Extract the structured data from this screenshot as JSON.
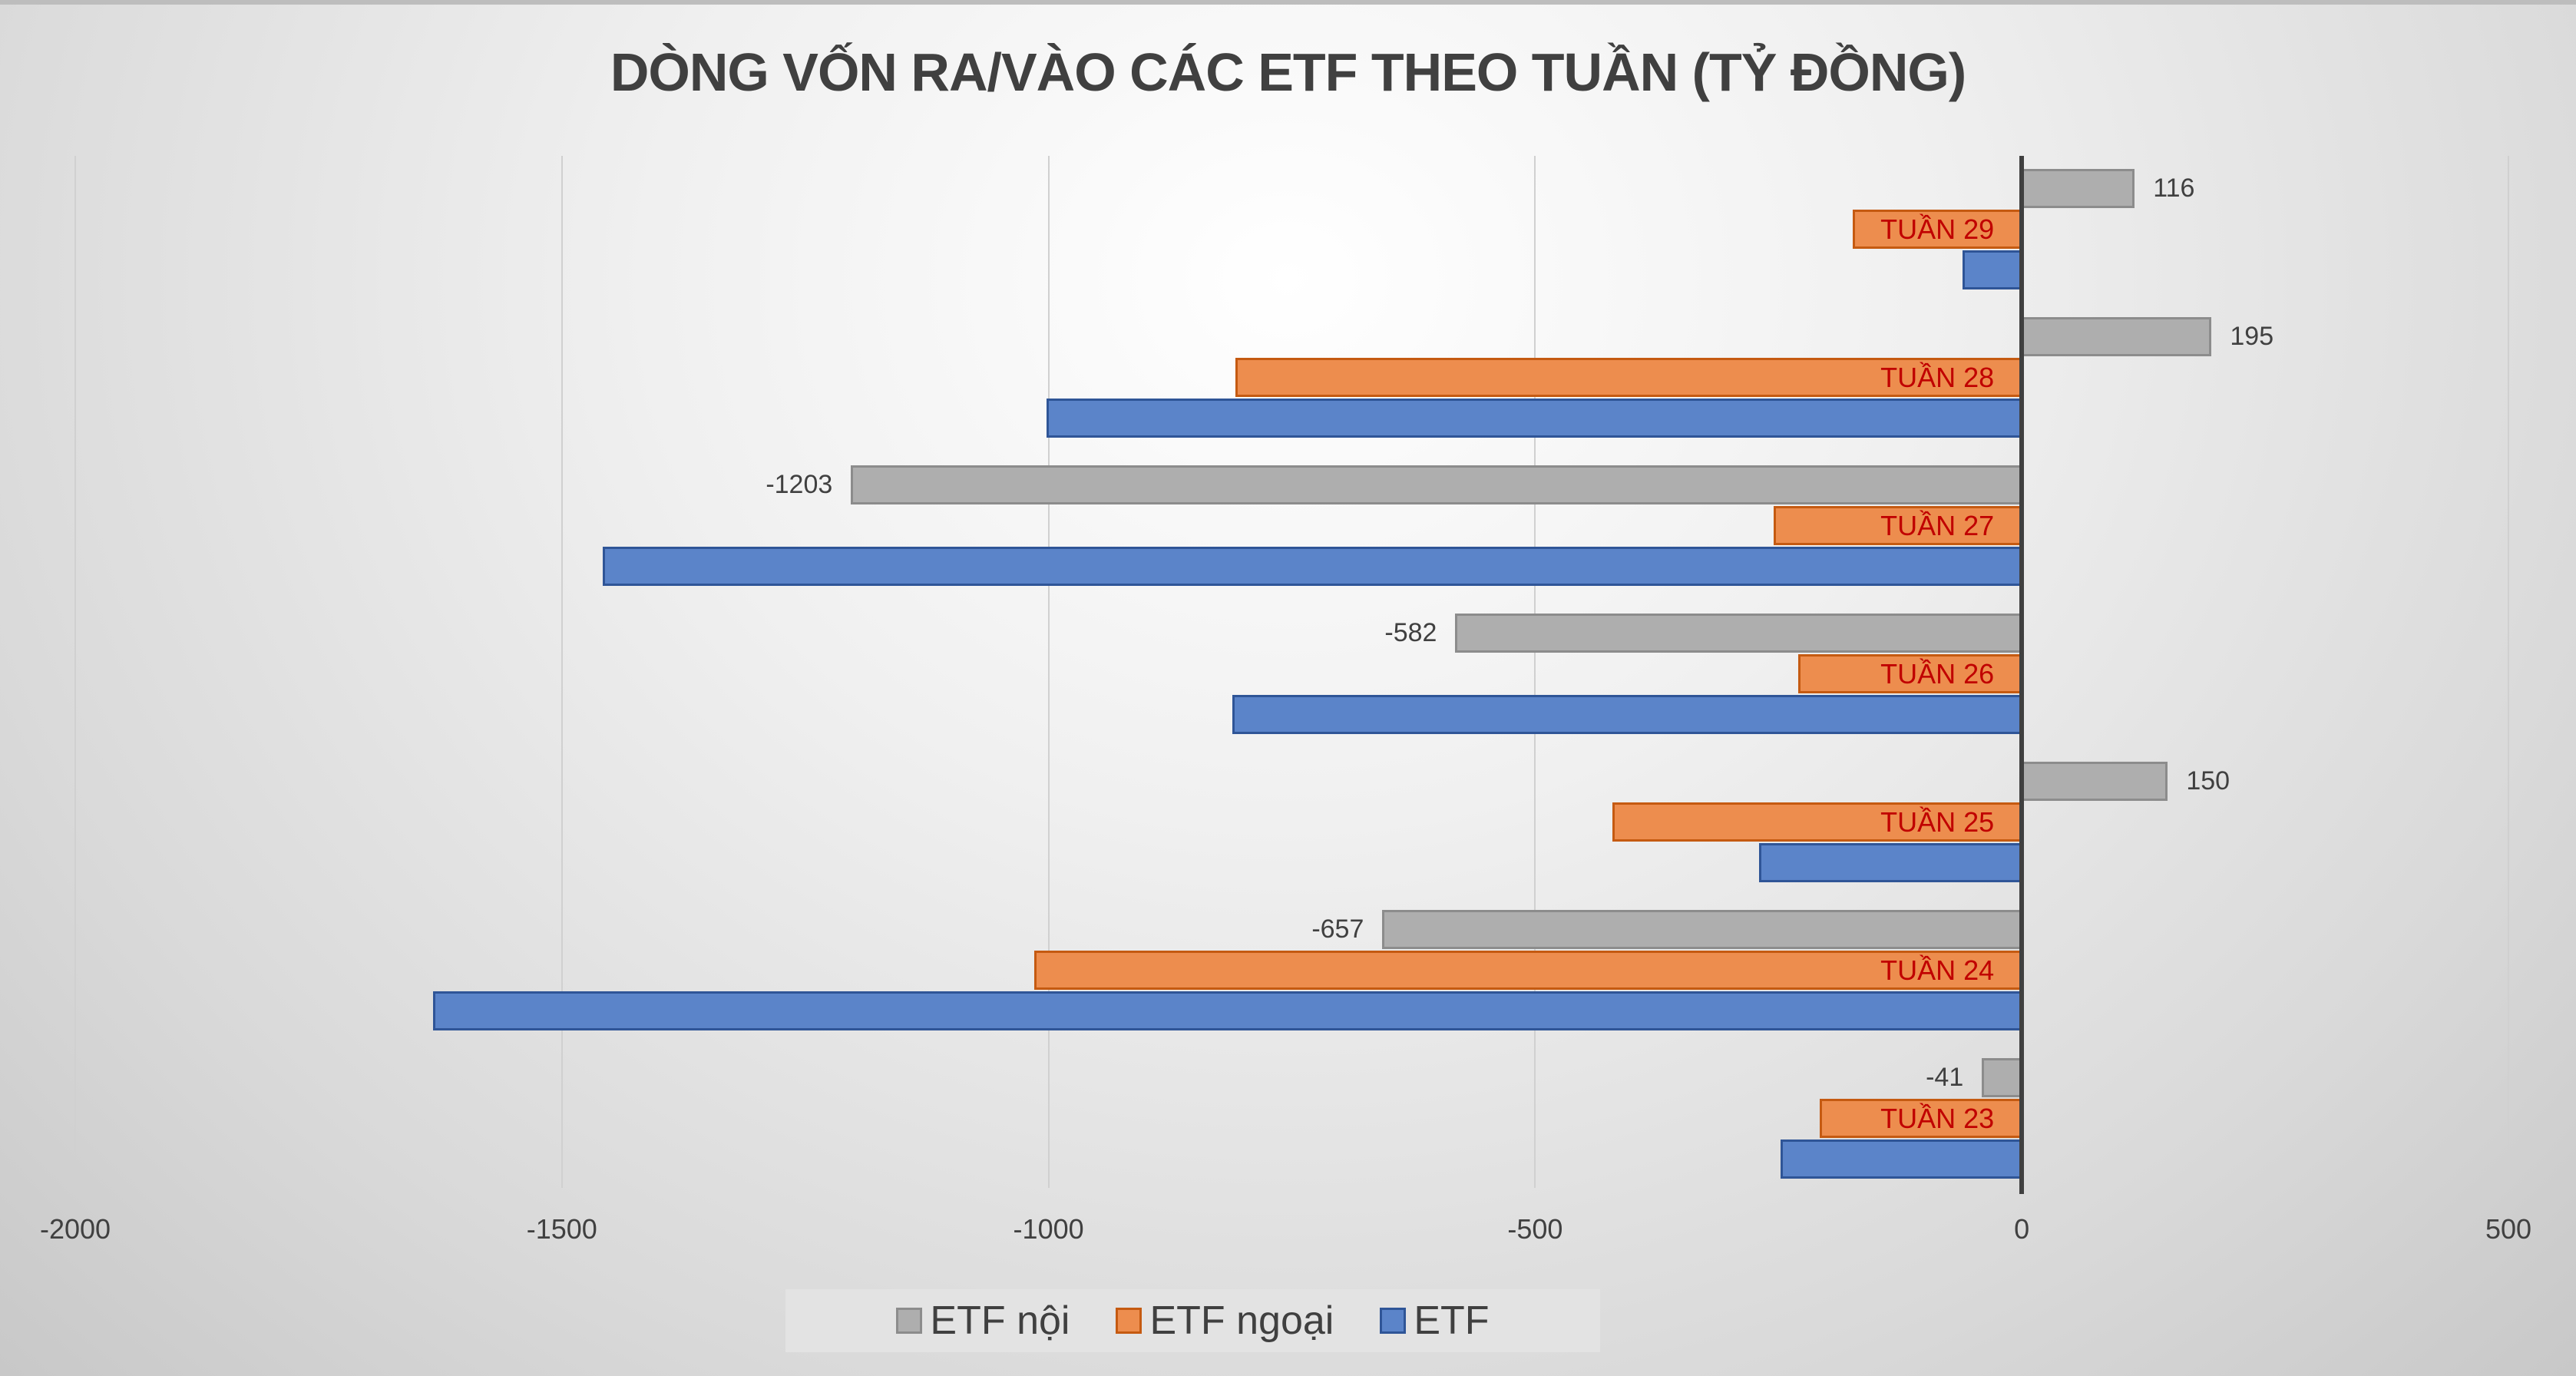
{
  "chart_data": {
    "type": "bar",
    "orientation": "horizontal",
    "title": "DÒNG VỐN RA/VÀO CÁC ETF THEO TUẦN (TỶ ĐỒNG)",
    "xlabel": "",
    "ylabel": "",
    "xlim": [
      -2000,
      500
    ],
    "xticks": [
      -2000,
      -1500,
      -1000,
      -500,
      0,
      500
    ],
    "grid": true,
    "legend_position": "bottom",
    "categories": [
      "TUẦN 29",
      "TUẦN 28",
      "TUẦN 27",
      "TUẦN 26",
      "TUẦN 25",
      "TUẦN 24",
      "TUẦN 23"
    ],
    "series": [
      {
        "name": "ETF nội",
        "color": "#aeaeae",
        "values": [
          116,
          195,
          -1203,
          -582,
          150,
          -657,
          -41
        ],
        "labeled": true
      },
      {
        "name": "ETF ngoại",
        "color": "#ed8d4e",
        "values": [
          -174,
          -808,
          -255,
          -230,
          -421,
          -1015,
          -208
        ],
        "labeled": false
      },
      {
        "name": "ETF",
        "color": "#5b84c9",
        "values": [
          -61,
          -1002,
          -1458,
          -811,
          -270,
          -1632,
          -248
        ],
        "labeled": false
      }
    ]
  },
  "title": "DÒNG VỐN RA/VÀO CÁC ETF THEO TUẦN (TỶ ĐỒNG)",
  "axis": {
    "ticks": [
      "-2000",
      "-1500",
      "-1000",
      "-500",
      "0",
      "500"
    ]
  },
  "legend": {
    "items": [
      {
        "label": "ETF nội",
        "color": "#aeaeae",
        "border": "#8c8c8c"
      },
      {
        "label": "ETF ngoại",
        "color": "#ed8d4e",
        "border": "#c55a11"
      },
      {
        "label": "ETF",
        "color": "#5b84c9",
        "border": "#2f5597"
      }
    ]
  }
}
